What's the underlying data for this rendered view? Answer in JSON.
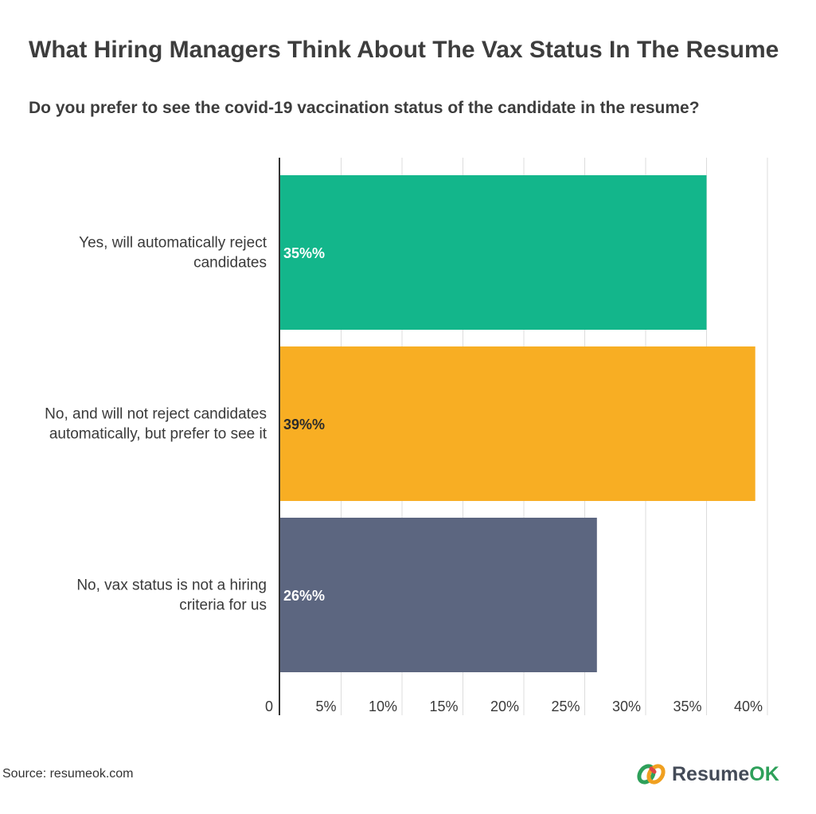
{
  "header": {
    "title": "What Hiring Managers Think About The Vax Status In The Resume",
    "subtitle": "Do you prefer to see the covid-19 vaccination status of the candidate in the resume?"
  },
  "chart_data": {
    "type": "bar",
    "orientation": "horizontal",
    "title": "What Hiring Managers Think About The Vax Status In The Resume",
    "subtitle": "Do you prefer to see the covid-19 vaccination status of the candidate in the resume?",
    "categories": [
      "Yes, will automatically reject candidates",
      "No, and will not reject candidates automatically, but prefer to see it",
      "No, vax status is not a hiring criteria for us"
    ],
    "category_lines": [
      [
        "Yes, will automatically reject",
        "candidates"
      ],
      [
        "No, and will not reject candidates",
        "automatically, but prefer to see it"
      ],
      [
        "No, vax status is not a hiring",
        "criteria for us"
      ]
    ],
    "values": [
      35,
      39,
      26
    ],
    "value_labels": [
      "35%%",
      "39%%",
      "26%%"
    ],
    "colors": [
      "#13b68b",
      "#f8ae23",
      "#5c6680"
    ],
    "label_colors": [
      "#ffffff",
      "#2b2b2b",
      "#ffffff"
    ],
    "xlim": [
      0,
      40
    ],
    "xticks": [
      0,
      5,
      10,
      15,
      20,
      25,
      30,
      35,
      40
    ],
    "xtick_labels": [
      "0",
      "5%",
      "10%",
      "15%",
      "20%",
      "25%",
      "30%",
      "35%",
      "40%"
    ],
    "grid": true,
    "legend": "none",
    "xlabel": "",
    "ylabel": ""
  },
  "footer": {
    "source": "Source: resumeok.com",
    "brand_main": "Resume",
    "brand_ok": "OK",
    "logo_icon": "linked-rings-logo-icon"
  }
}
